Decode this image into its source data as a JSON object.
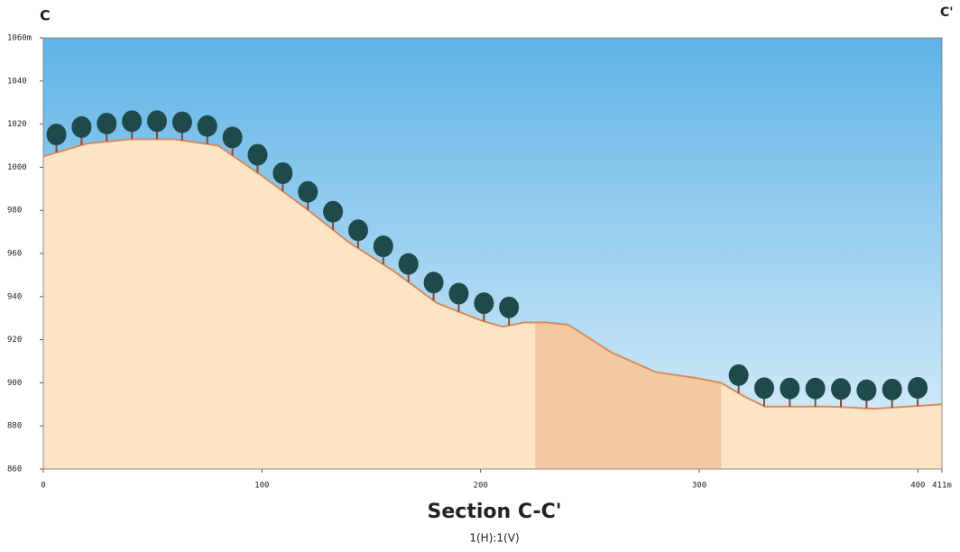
{
  "chart_data": {
    "type": "section",
    "label_left": "C",
    "label_right": "C'",
    "title": "Section C-C'",
    "subtitle": "1(H):1(V)",
    "x": [
      0,
      20,
      40,
      60,
      80,
      100,
      120,
      140,
      160,
      180,
      200,
      210,
      220,
      230,
      240,
      260,
      280,
      300,
      310,
      320,
      330,
      360,
      380,
      411
    ],
    "values": [
      1005,
      1011,
      1013,
      1013,
      1010,
      996,
      981,
      965,
      952,
      937,
      929,
      926,
      928,
      928,
      927,
      914,
      905,
      902,
      900,
      894,
      889,
      889,
      888,
      890
    ],
    "color": "#fbe5c4",
    "line_color": "#d98a5a",
    "shaded_range": [
      225,
      310
    ],
    "shaded_color": "#f2c9a0",
    "xlim": [
      0,
      411
    ],
    "ylim": [
      860,
      1060
    ],
    "xticks": [
      0,
      100,
      200,
      300,
      400,
      {
        "value": 411,
        "label": "411m"
      }
    ],
    "yticks": [
      {
        "value": 1060,
        "label": "1060m"
      },
      1040,
      1020,
      1000,
      980,
      960,
      940,
      920,
      900,
      880,
      860
    ]
  }
}
